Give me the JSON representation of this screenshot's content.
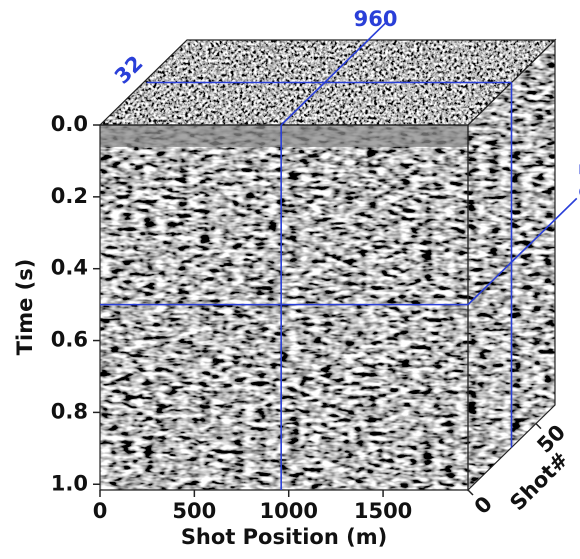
{
  "chart_data": {
    "type": "cube",
    "xlabel": "Shot Position (m)",
    "ylabel": "Time (s)",
    "zlabel": "Shot#",
    "xlim": [
      0,
      1950
    ],
    "xticks": [
      0,
      500,
      1000,
      1500
    ],
    "ylim": [
      0,
      1.016
    ],
    "yticks": [
      {
        "value": 0,
        "label": "0.0"
      },
      0.2,
      0.4,
      0.6,
      0.8,
      {
        "value": 1,
        "label": "1.0"
      }
    ],
    "zlim": [
      0,
      64
    ],
    "zticks": [
      0,
      50
    ],
    "slice": {
      "x": 960,
      "y": 0.5,
      "z": 32
    },
    "slice_color": "#2a3fd8"
  }
}
